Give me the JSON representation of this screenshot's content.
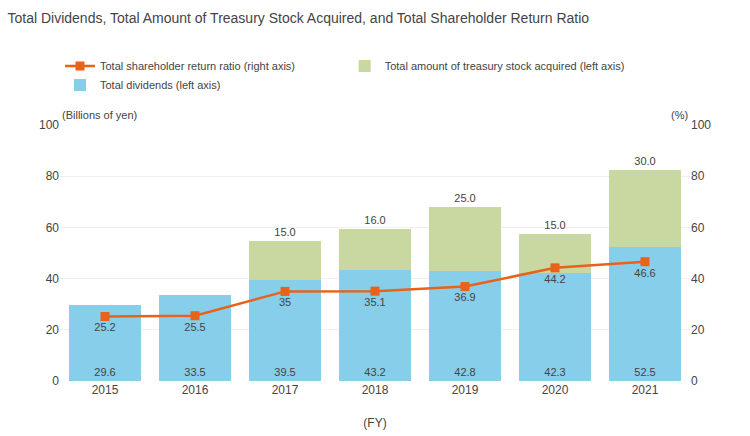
{
  "chart_data": {
    "type": "bar",
    "title": "Total Dividends, Total Amount of Treasury Stock Acquired, and Total Shareholder Return Ratio",
    "categories": [
      "2015",
      "2016",
      "2017",
      "2018",
      "2019",
      "2020",
      "2021"
    ],
    "x_label": "(FY)",
    "y_label": "(Billions of yen)",
    "y2_label": "(%)",
    "stacked": true,
    "grid": true,
    "legend": "top",
    "ylim": [
      0,
      100
    ],
    "yticks": [
      0,
      20,
      40,
      60,
      80,
      100
    ],
    "y2lim": [
      0,
      100
    ],
    "y2ticks": [
      0,
      20,
      40,
      60,
      80,
      100
    ],
    "series": [
      {
        "name": "Total dividends (left axis)",
        "type": "bar",
        "color": "#87CEEB",
        "values": [
          29.6,
          33.5,
          39.5,
          43.2,
          42.8,
          42.3,
          52.5
        ],
        "data_labels": true
      },
      {
        "name": "Total amount of treasury stock acquired (left axis)",
        "type": "bar",
        "color": "#C8D8A0",
        "values": [
          0,
          0,
          15.0,
          16.0,
          25.0,
          15.0,
          30.0
        ],
        "data_labels": true,
        "value_labels": [
          null,
          null,
          "15.0",
          "16.0",
          "25.0",
          "15.0",
          "30.0"
        ]
      },
      {
        "name": "Total shareholder return ratio (right axis)",
        "type": "line",
        "axis": "y2",
        "color": "#E8621A",
        "marker": "square",
        "values": [
          25.2,
          25.5,
          35.0,
          35.1,
          36.9,
          44.2,
          46.6
        ],
        "data_labels": true
      }
    ]
  }
}
